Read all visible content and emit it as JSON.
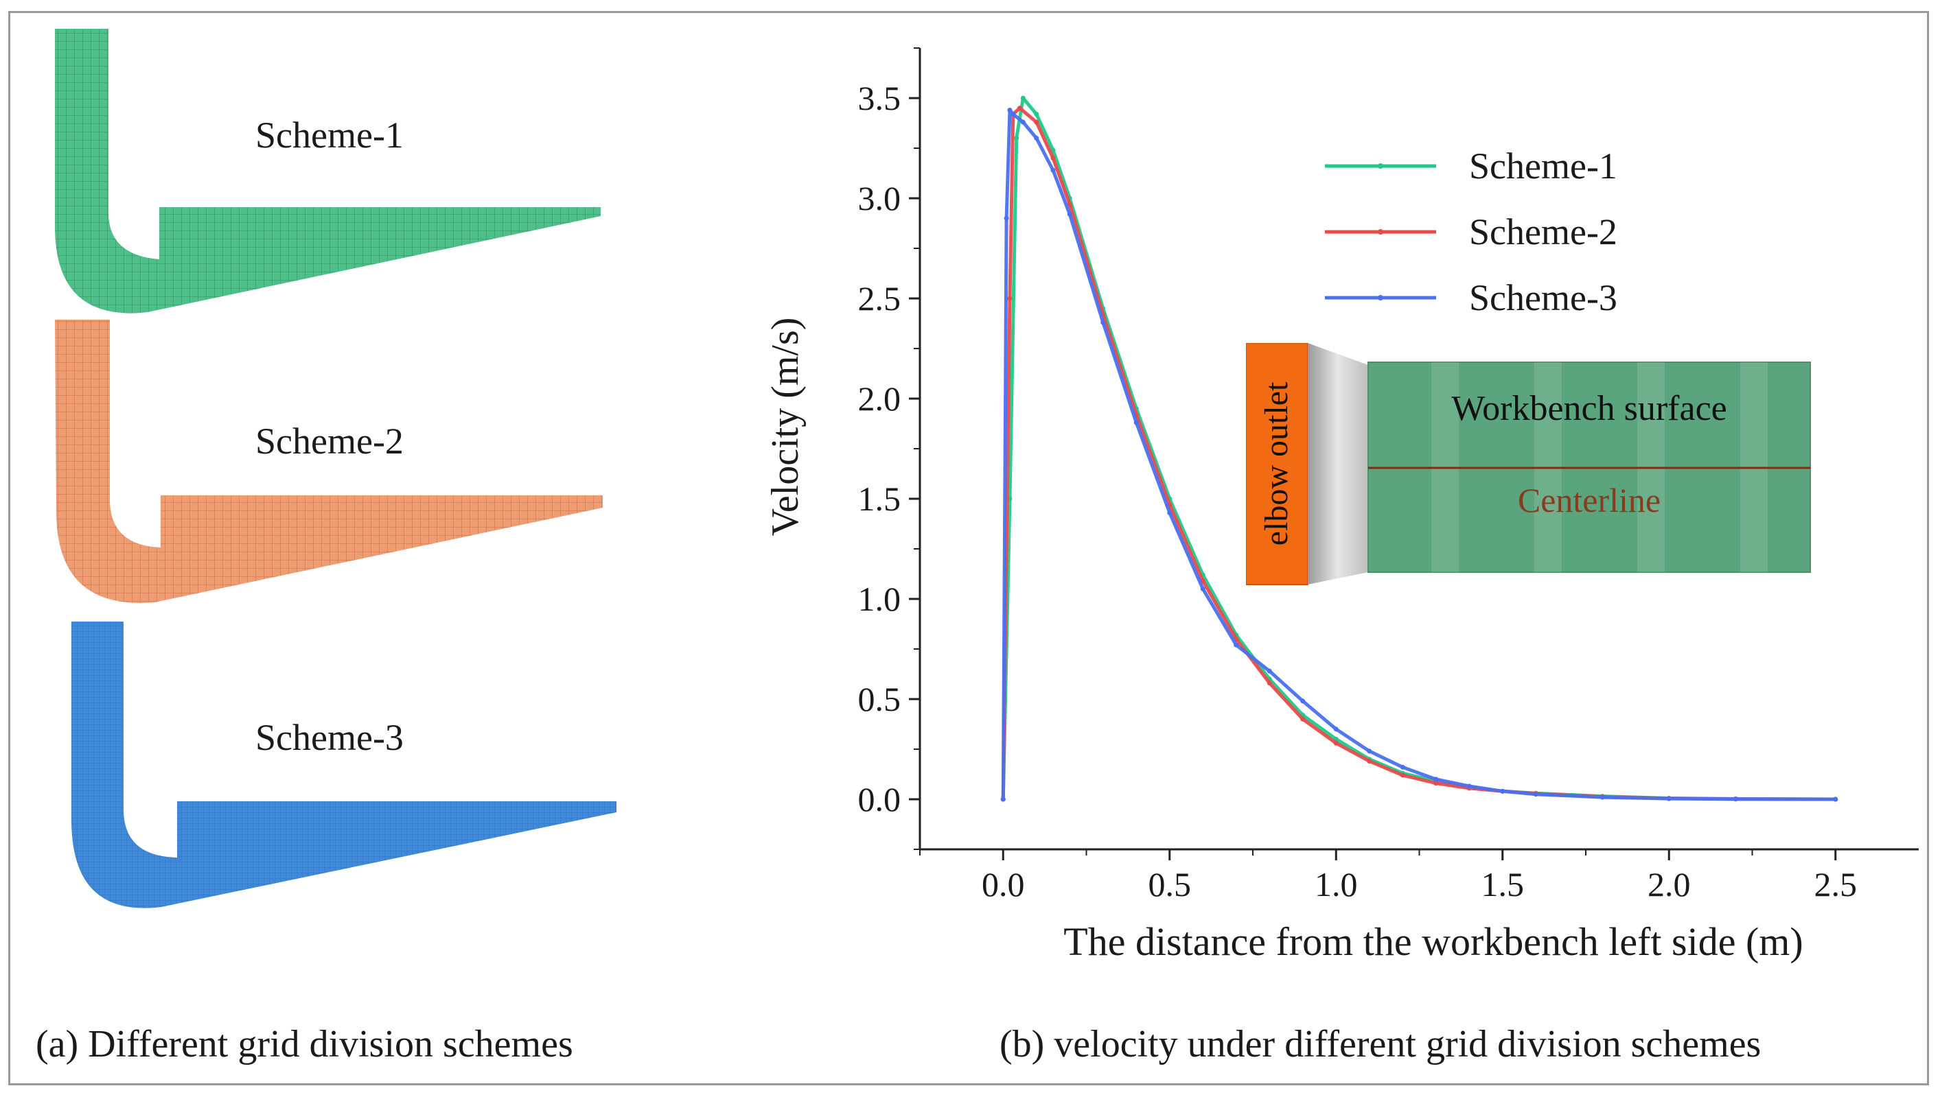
{
  "left_panel": {
    "schemes": [
      {
        "label": "Scheme-1",
        "color": "#4fbf8a",
        "grid_color": "#2e8f5f"
      },
      {
        "label": "Scheme-2",
        "color": "#ee9d73",
        "grid_color": "#c96d45"
      },
      {
        "label": "Scheme-3",
        "color": "#3f8ad8",
        "grid_color": "#2a66ad"
      }
    ],
    "caption": "(a) Different grid division schemes"
  },
  "right_panel": {
    "caption": "(b) velocity under different grid division schemes"
  },
  "inset": {
    "outlet_label": "elbow outlet",
    "surface_label": "Workbench surface",
    "centerline_label": "Centerline",
    "outlet_color": "#f26a12",
    "surface_color": "#5aa57d",
    "centerline_color": "#8a2a12"
  },
  "chart_data": {
    "type": "line",
    "title": "",
    "xlabel": "The distance from the workbench left side (m)",
    "ylabel": "Velocity (m/s)",
    "xlim": [
      -0.25,
      2.75
    ],
    "ylim": [
      -0.25,
      3.75
    ],
    "xticks": [
      0.0,
      0.5,
      1.0,
      1.5,
      2.0,
      2.5
    ],
    "xtick_labels": [
      "0.0",
      "0.5",
      "1.0",
      "1.5",
      "2.0",
      "2.5"
    ],
    "yticks": [
      0.0,
      0.5,
      1.0,
      1.5,
      2.0,
      2.5,
      3.0,
      3.5
    ],
    "ytick_labels": [
      "0.0",
      "0.5",
      "1.0",
      "1.5",
      "2.0",
      "2.5",
      "3.0",
      "3.5"
    ],
    "legend_position": "top-right",
    "series": [
      {
        "name": "Scheme-1",
        "color": "#20c98a",
        "x": [
          0.0,
          0.02,
          0.04,
          0.06,
          0.1,
          0.15,
          0.2,
          0.3,
          0.4,
          0.5,
          0.6,
          0.7,
          0.8,
          0.9,
          1.0,
          1.1,
          1.2,
          1.3,
          1.4,
          1.5,
          1.6,
          1.8,
          2.0,
          2.2,
          2.5
        ],
        "y": [
          0.0,
          1.5,
          3.3,
          3.5,
          3.42,
          3.24,
          3.0,
          2.45,
          1.95,
          1.5,
          1.12,
          0.82,
          0.6,
          0.42,
          0.3,
          0.2,
          0.13,
          0.09,
          0.06,
          0.04,
          0.03,
          0.015,
          0.005,
          0.002,
          0.0
        ]
      },
      {
        "name": "Scheme-2",
        "color": "#e84a4a",
        "x": [
          0.0,
          0.02,
          0.03,
          0.05,
          0.1,
          0.15,
          0.2,
          0.3,
          0.4,
          0.5,
          0.6,
          0.7,
          0.8,
          0.9,
          1.0,
          1.1,
          1.2,
          1.3,
          1.4,
          1.5,
          1.6,
          1.8,
          2.0,
          2.2,
          2.5
        ],
        "y": [
          0.0,
          2.5,
          3.42,
          3.45,
          3.38,
          3.2,
          2.97,
          2.42,
          1.92,
          1.47,
          1.09,
          0.8,
          0.58,
          0.4,
          0.28,
          0.19,
          0.12,
          0.08,
          0.055,
          0.04,
          0.028,
          0.012,
          0.004,
          0.001,
          0.0
        ]
      },
      {
        "name": "Scheme-3",
        "color": "#4a6ff0",
        "x": [
          0.0,
          0.01,
          0.02,
          0.03,
          0.06,
          0.1,
          0.15,
          0.2,
          0.3,
          0.4,
          0.5,
          0.6,
          0.7,
          0.8,
          0.9,
          1.0,
          1.1,
          1.2,
          1.3,
          1.4,
          1.5,
          1.6,
          1.8,
          2.0,
          2.2,
          2.5
        ],
        "y": [
          0.0,
          2.9,
          3.44,
          3.42,
          3.38,
          3.3,
          3.14,
          2.92,
          2.38,
          1.88,
          1.43,
          1.05,
          0.77,
          0.64,
          0.49,
          0.35,
          0.24,
          0.16,
          0.1,
          0.065,
          0.04,
          0.025,
          0.01,
          0.003,
          0.001,
          0.0
        ]
      }
    ]
  }
}
